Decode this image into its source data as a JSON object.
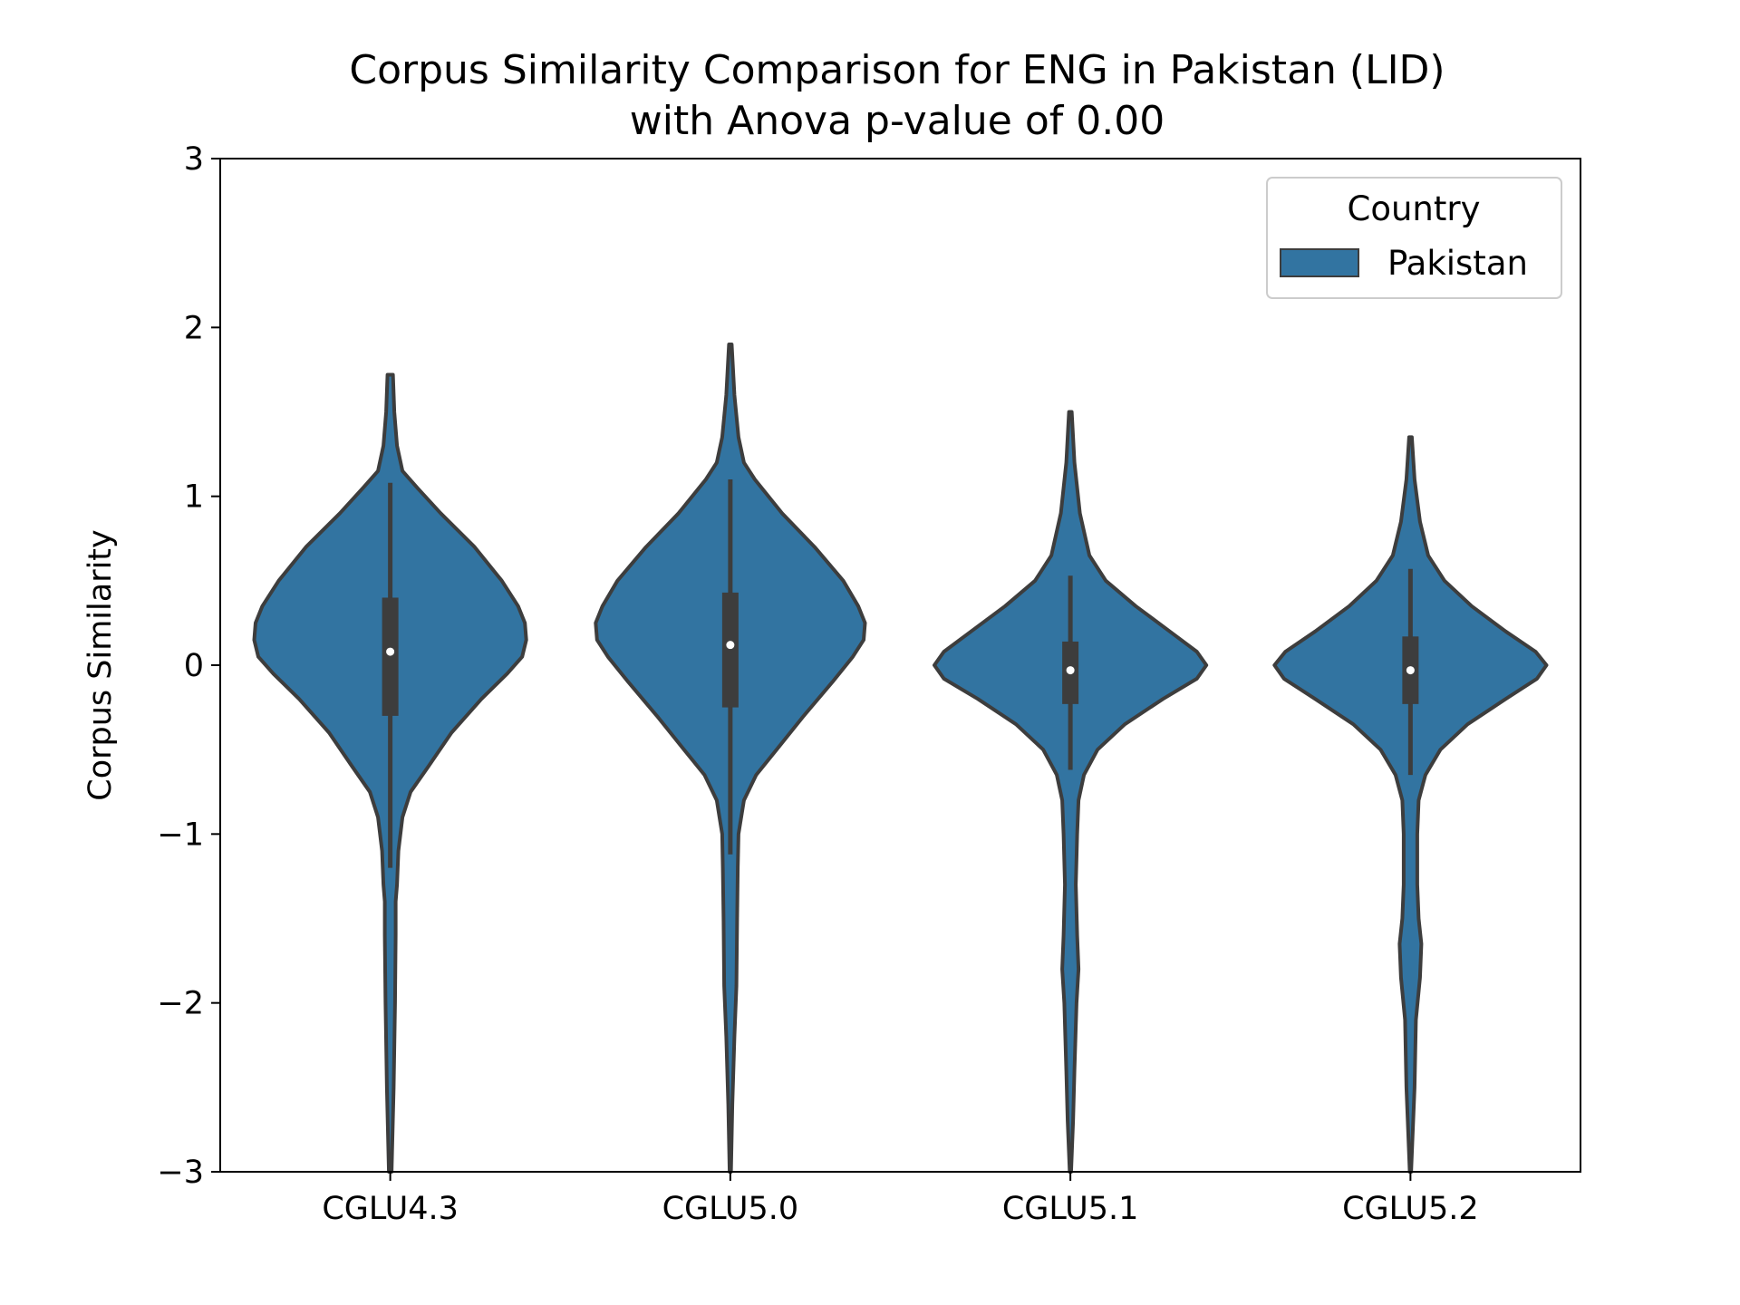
{
  "chart_data": {
    "type": "violin",
    "title": [
      "Corpus Similarity Comparison for ENG in Pakistan (LID)",
      "with Anova p-value of 0.00"
    ],
    "xlabel": "",
    "ylabel": "Corpus Similarity",
    "ylim": [
      -3,
      3
    ],
    "yticks": [
      -3,
      -2,
      -1,
      0,
      1,
      2,
      3
    ],
    "ytick_labels": [
      "−3",
      "−2",
      "−1",
      "0",
      "1",
      "2",
      "3"
    ],
    "categories": [
      "CGLU4.3",
      "CGLU5.0",
      "CGLU5.1",
      "CGLU5.2"
    ],
    "grid": false,
    "legend": {
      "title": "Country",
      "placement": "top-right",
      "entries": [
        {
          "label": "Pakistan",
          "color": "#3274a1"
        }
      ]
    },
    "series": [
      {
        "name": "Pakistan",
        "color": "#3274a1",
        "violins": [
          {
            "category": "CGLU4.3",
            "median": 0.08,
            "q1": -0.3,
            "q3": 0.4,
            "whisker_low": -1.2,
            "whisker_high": 1.08,
            "density": [
              [
                1.72,
                0.02
              ],
              [
                1.5,
                0.03
              ],
              [
                1.3,
                0.05
              ],
              [
                1.15,
                0.09
              ],
              [
                1.05,
                0.2
              ],
              [
                0.9,
                0.37
              ],
              [
                0.7,
                0.62
              ],
              [
                0.5,
                0.82
              ],
              [
                0.35,
                0.94
              ],
              [
                0.25,
                0.99
              ],
              [
                0.15,
                1.0
              ],
              [
                0.05,
                0.97
              ],
              [
                -0.05,
                0.86
              ],
              [
                -0.2,
                0.67
              ],
              [
                -0.4,
                0.45
              ],
              [
                -0.6,
                0.28
              ],
              [
                -0.75,
                0.15
              ],
              [
                -0.9,
                0.09
              ],
              [
                -1.1,
                0.06
              ],
              [
                -1.3,
                0.05
              ],
              [
                -1.4,
                0.04
              ],
              [
                -1.6,
                0.04
              ],
              [
                -2.0,
                0.035
              ],
              [
                -2.5,
                0.025
              ],
              [
                -3.0,
                0.01
              ]
            ]
          },
          {
            "category": "CGLU5.0",
            "median": 0.12,
            "q1": -0.25,
            "q3": 0.43,
            "whisker_low": -1.12,
            "whisker_high": 1.1,
            "density": [
              [
                1.9,
                0.01
              ],
              [
                1.6,
                0.03
              ],
              [
                1.35,
                0.06
              ],
              [
                1.2,
                0.1
              ],
              [
                1.1,
                0.18
              ],
              [
                0.9,
                0.38
              ],
              [
                0.7,
                0.62
              ],
              [
                0.5,
                0.83
              ],
              [
                0.35,
                0.94
              ],
              [
                0.25,
                0.99
              ],
              [
                0.15,
                0.98
              ],
              [
                0.05,
                0.9
              ],
              [
                -0.1,
                0.75
              ],
              [
                -0.3,
                0.54
              ],
              [
                -0.5,
                0.34
              ],
              [
                -0.65,
                0.19
              ],
              [
                -0.8,
                0.1
              ],
              [
                -1.0,
                0.06
              ],
              [
                -1.2,
                0.055
              ],
              [
                -1.5,
                0.05
              ],
              [
                -1.9,
                0.045
              ],
              [
                -2.2,
                0.03
              ],
              [
                -2.6,
                0.015
              ],
              [
                -3.0,
                0.005
              ]
            ]
          },
          {
            "category": "CGLU5.1",
            "median": -0.03,
            "q1": -0.23,
            "q3": 0.14,
            "whisker_low": -0.62,
            "whisker_high": 0.53,
            "density": [
              [
                1.5,
                0.01
              ],
              [
                1.2,
                0.03
              ],
              [
                0.9,
                0.07
              ],
              [
                0.65,
                0.14
              ],
              [
                0.5,
                0.26
              ],
              [
                0.35,
                0.48
              ],
              [
                0.2,
                0.73
              ],
              [
                0.08,
                0.93
              ],
              [
                0.0,
                1.0
              ],
              [
                -0.08,
                0.93
              ],
              [
                -0.2,
                0.68
              ],
              [
                -0.35,
                0.4
              ],
              [
                -0.5,
                0.2
              ],
              [
                -0.65,
                0.1
              ],
              [
                -0.8,
                0.06
              ],
              [
                -1.0,
                0.05
              ],
              [
                -1.3,
                0.04
              ],
              [
                -1.6,
                0.05
              ],
              [
                -1.8,
                0.06
              ],
              [
                -2.0,
                0.045
              ],
              [
                -2.4,
                0.03
              ],
              [
                -2.7,
                0.02
              ],
              [
                -3.0,
                0.005
              ]
            ]
          },
          {
            "category": "CGLU5.2",
            "median": -0.03,
            "q1": -0.23,
            "q3": 0.17,
            "whisker_low": -0.65,
            "whisker_high": 0.57,
            "density": [
              [
                1.35,
                0.01
              ],
              [
                1.1,
                0.03
              ],
              [
                0.85,
                0.07
              ],
              [
                0.65,
                0.13
              ],
              [
                0.5,
                0.25
              ],
              [
                0.35,
                0.45
              ],
              [
                0.2,
                0.7
              ],
              [
                0.08,
                0.92
              ],
              [
                0.0,
                1.0
              ],
              [
                -0.08,
                0.93
              ],
              [
                -0.2,
                0.7
              ],
              [
                -0.35,
                0.42
              ],
              [
                -0.5,
                0.22
              ],
              [
                -0.65,
                0.11
              ],
              [
                -0.8,
                0.06
              ],
              [
                -1.0,
                0.05
              ],
              [
                -1.3,
                0.05
              ],
              [
                -1.5,
                0.06
              ],
              [
                -1.65,
                0.08
              ],
              [
                -1.85,
                0.07
              ],
              [
                -2.1,
                0.04
              ],
              [
                -2.5,
                0.03
              ],
              [
                -3.0,
                0.005
              ]
            ]
          }
        ]
      }
    ]
  }
}
